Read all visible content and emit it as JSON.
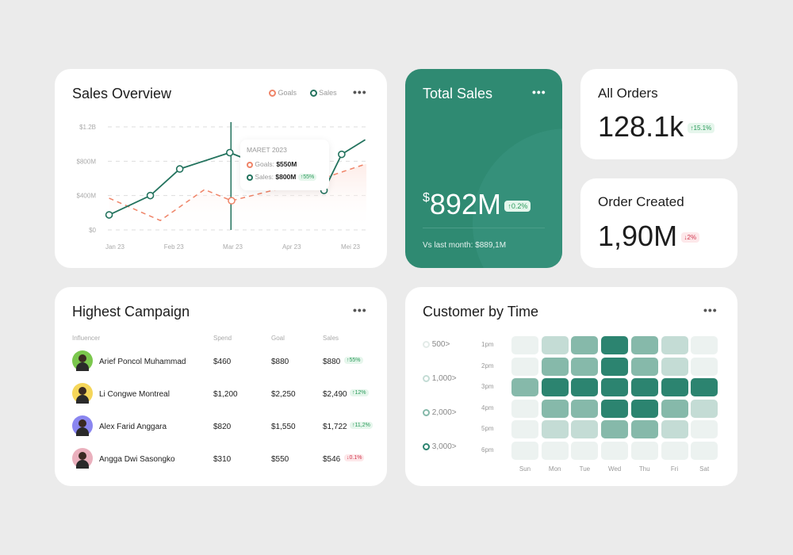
{
  "sales_overview": {
    "title": "Sales Overview",
    "more_icon": "more-horizontal-icon",
    "legend": [
      {
        "label": "Goals",
        "color": "#ef8468"
      },
      {
        "label": "Sales",
        "color": "#23735e"
      }
    ],
    "tooltip": {
      "title": "MARET 2023",
      "goals_label": "Goals:",
      "goals_value": "$550M",
      "sales_label": "Sales:",
      "sales_value": "$800M",
      "sales_change": "↑55%"
    },
    "chart_data": {
      "type": "line",
      "categories": [
        "Jan 23",
        "Feb 23",
        "Mar 23",
        "Apr 23",
        "Mei 23"
      ],
      "yticks": [
        "$0",
        "$400M",
        "$800M",
        "$1.2B"
      ],
      "ylim": [
        0,
        1200
      ],
      "grid": true,
      "legend_position": "top-right",
      "series": [
        {
          "name": "Sales",
          "color": "#23735e",
          "points": [
            [
              -0.1,
              175
            ],
            [
              0.6,
              400
            ],
            [
              1.1,
              710
            ],
            [
              1.95,
              900
            ],
            [
              3.55,
              460
            ],
            [
              3.85,
              880
            ],
            [
              4.25,
              1050
            ]
          ]
        },
        {
          "name": "Goals",
          "color": "#ef8468",
          "dashed": true,
          "points": [
            [
              -0.1,
              370
            ],
            [
              0.77,
              110
            ],
            [
              1.52,
              470
            ],
            [
              1.98,
              340
            ],
            [
              3.66,
              630
            ],
            [
              4.27,
              770
            ]
          ]
        }
      ]
    }
  },
  "total_sales": {
    "title": "Total Sales",
    "currency": "$",
    "value": "892M",
    "change": "↑0.2%",
    "vs_last": "Vs last month: $889,1M",
    "bg": "#2f8a72"
  },
  "all_orders": {
    "title": "All Orders",
    "value": "128.1k",
    "change": "↑15.1%"
  },
  "order_created": {
    "title": "Order Created",
    "value": "1,90M",
    "change": "↓2%"
  },
  "campaign": {
    "title": "Highest Campaign",
    "headers": [
      "Influencer",
      "Spend",
      "Goal",
      "Sales"
    ],
    "rows": [
      {
        "name": "Arief Poncol Muhammad",
        "spend": "$460",
        "goal": "$880",
        "sales": "$880",
        "change": "↑55%",
        "trend": "up",
        "avatar_color": "#7bc74d"
      },
      {
        "name": "Li Congwe Montreal",
        "spend": "$1,200",
        "goal": "$2,250",
        "sales": "$2,490",
        "change": "↑12%",
        "trend": "up",
        "avatar_color": "#f5d65a"
      },
      {
        "name": "Alex Farid Anggara",
        "spend": "$820",
        "goal": "$1,550",
        "sales": "$1,722",
        "change": "↑11,2%",
        "trend": "up",
        "avatar_color": "#8a86f0"
      },
      {
        "name": "Angga Dwi Sasongko",
        "spend": "$310",
        "goal": "$550",
        "sales": "$546",
        "change": "↓0.1%",
        "trend": "down",
        "avatar_color": "#eab0bd"
      }
    ]
  },
  "customer_time": {
    "title": "Customer by Time",
    "legend": [
      "500>",
      "1,000>",
      "2,000>",
      "3,000>"
    ],
    "level_colors": [
      "#ecf2f0",
      "#c4dcd5",
      "#86b9aa",
      "#2c8470"
    ],
    "chart_data": {
      "type": "heatmap",
      "x": [
        "Sun",
        "Mon",
        "Tue",
        "Wed",
        "Thu",
        "Fri",
        "Sat"
      ],
      "y": [
        "1pm",
        "2pm",
        "3pm",
        "4pm",
        "5pm",
        "6pm"
      ],
      "levels": [
        [
          0,
          1,
          2,
          3,
          2,
          1,
          0
        ],
        [
          0,
          2,
          2,
          3,
          2,
          1,
          0
        ],
        [
          2,
          3,
          3,
          3,
          3,
          3,
          3
        ],
        [
          0,
          2,
          2,
          3,
          3,
          2,
          1
        ],
        [
          0,
          1,
          1,
          2,
          2,
          1,
          0
        ],
        [
          0,
          0,
          0,
          0,
          0,
          0,
          0
        ]
      ]
    }
  }
}
